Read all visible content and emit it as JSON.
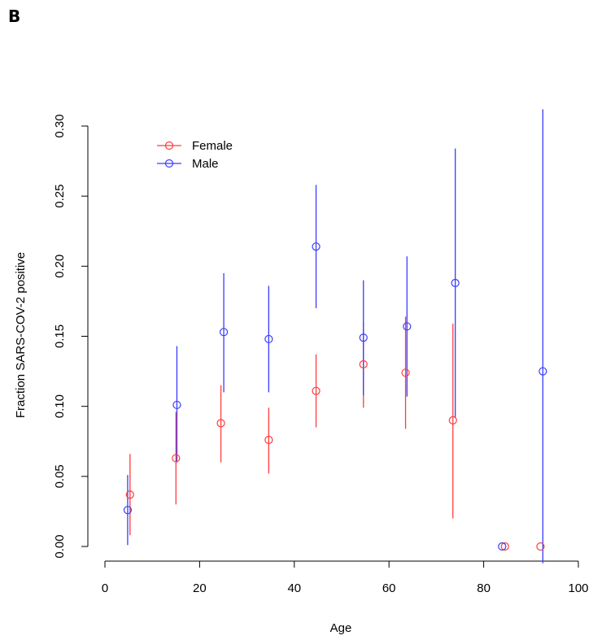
{
  "panel_label": "B",
  "chart_data": {
    "type": "scatter",
    "title": "",
    "xlabel": "Age",
    "ylabel": "Fraction SARS-COV-2 positive",
    "xlim": [
      0,
      100
    ],
    "ylim": [
      0,
      0.3
    ],
    "x_ticks": [
      0,
      20,
      40,
      60,
      80,
      100
    ],
    "y_ticks": [
      0.0,
      0.05,
      0.1,
      0.15,
      0.2,
      0.25,
      0.3
    ],
    "x_tick_labels": [
      "0",
      "20",
      "40",
      "60",
      "80",
      "100"
    ],
    "y_tick_labels": [
      "0.00",
      "0.05",
      "0.10",
      "0.15",
      "0.20",
      "0.25",
      "0.30"
    ],
    "grid": false,
    "legend_position": "top-left",
    "error_bars": true,
    "series": [
      {
        "name": "Female",
        "color": "#ff3b3b",
        "points": [
          {
            "x": 5.3,
            "y": 0.037,
            "lo": 0.008,
            "hi": 0.066
          },
          {
            "x": 15.0,
            "y": 0.063,
            "lo": 0.03,
            "hi": 0.096
          },
          {
            "x": 24.5,
            "y": 0.088,
            "lo": 0.06,
            "hi": 0.115
          },
          {
            "x": 34.6,
            "y": 0.076,
            "lo": 0.052,
            "hi": 0.099
          },
          {
            "x": 44.6,
            "y": 0.111,
            "lo": 0.085,
            "hi": 0.137
          },
          {
            "x": 54.6,
            "y": 0.13,
            "lo": 0.099,
            "hi": 0.16
          },
          {
            "x": 63.5,
            "y": 0.124,
            "lo": 0.084,
            "hi": 0.164
          },
          {
            "x": 73.5,
            "y": 0.09,
            "lo": 0.02,
            "hi": 0.159
          },
          {
            "x": 84.5,
            "y": 0.0,
            "lo": 0.0,
            "hi": 0.0
          },
          {
            "x": 92.0,
            "y": 0.0,
            "lo": 0.0,
            "hi": 0.0
          }
        ]
      },
      {
        "name": "Male",
        "color": "#3b3bff",
        "points": [
          {
            "x": 4.8,
            "y": 0.026,
            "lo": 0.001,
            "hi": 0.051
          },
          {
            "x": 15.2,
            "y": 0.101,
            "lo": 0.06,
            "hi": 0.143
          },
          {
            "x": 25.1,
            "y": 0.153,
            "lo": 0.11,
            "hi": 0.195
          },
          {
            "x": 34.6,
            "y": 0.148,
            "lo": 0.11,
            "hi": 0.186
          },
          {
            "x": 44.6,
            "y": 0.214,
            "lo": 0.17,
            "hi": 0.258
          },
          {
            "x": 54.6,
            "y": 0.149,
            "lo": 0.108,
            "hi": 0.19
          },
          {
            "x": 63.8,
            "y": 0.157,
            "lo": 0.107,
            "hi": 0.207
          },
          {
            "x": 74.0,
            "y": 0.188,
            "lo": 0.092,
            "hi": 0.284
          },
          {
            "x": 83.9,
            "y": 0.0,
            "lo": 0.0,
            "hi": 0.0
          },
          {
            "x": 92.5,
            "y": 0.125,
            "lo": -0.012,
            "hi": 0.312
          }
        ]
      }
    ]
  }
}
